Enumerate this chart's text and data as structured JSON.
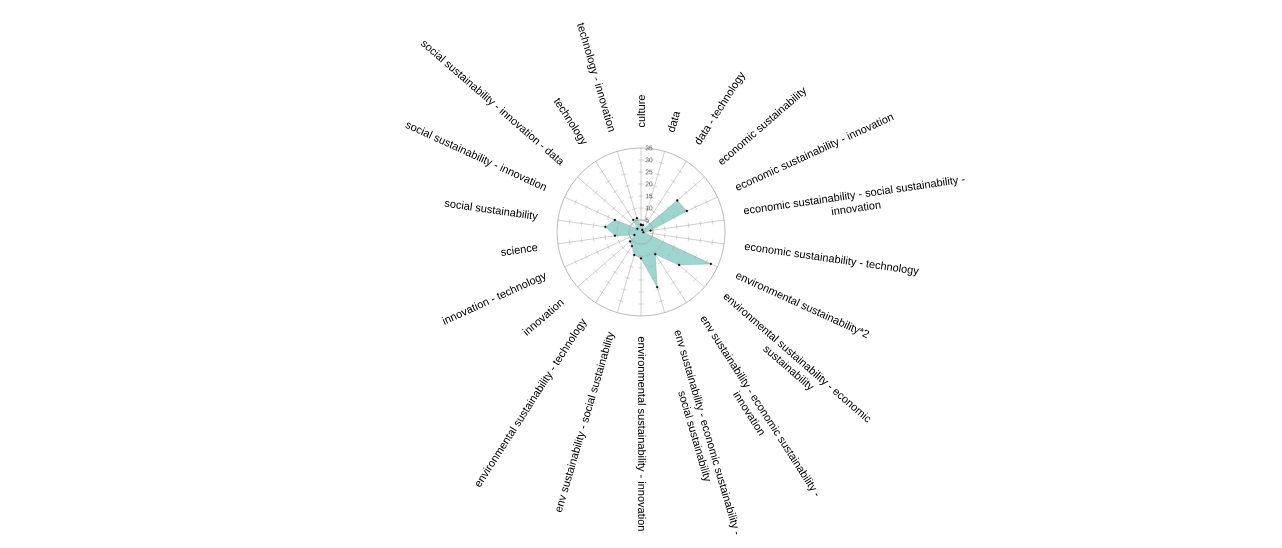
{
  "chart_data": {
    "type": "radar",
    "categories": [
      "culture",
      "data",
      "data - technology",
      "economic sustainability",
      "economic sustainability - innovation",
      "economic sustainability - social sustainability - innovation",
      "economic sustainability - technology",
      "environmental sustainability*2",
      "environmental sustainability - economic sustainability",
      "env sustainability - economic sustainability - innovation",
      "env sustainability - economic sustainability - social sustainability",
      "environmental sustainability - innovation",
      "env sustainability - social sustainability",
      "environmental sustainability - technology",
      "innovation",
      "innovation - technology",
      "science",
      "social sustainability",
      "social sustainability - innovation",
      "social sustainability - innovation - data",
      "technology",
      "technology - innovation"
    ],
    "series": [
      {
        "color": "#9ed6cf",
        "values": [
          3,
          3,
          1,
          20,
          21,
          4,
          1,
          32,
          21,
          11,
          24,
          11,
          10,
          7,
          6,
          3,
          11,
          15,
          12,
          2,
          6,
          6
        ]
      }
    ],
    "ylim": [
      0,
      35
    ],
    "yticks": [
      5,
      10,
      15,
      20,
      25,
      30,
      35
    ],
    "grid": true,
    "marker": "circle"
  }
}
